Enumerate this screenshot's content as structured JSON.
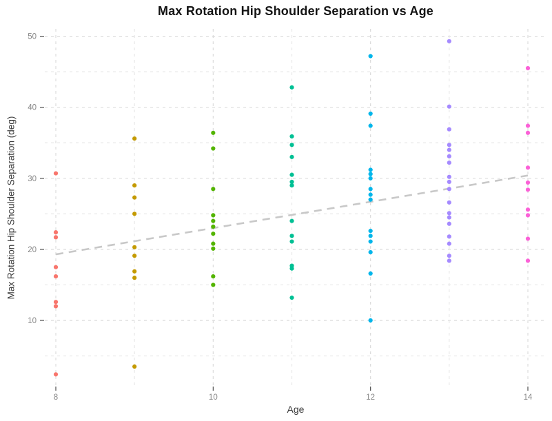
{
  "title": "Max Rotation Hip Shoulder Separation vs Age",
  "x_axis": {
    "label": "Age",
    "ticks": [
      8,
      10,
      12,
      14
    ],
    "minor_ticks": [
      9,
      11,
      13
    ],
    "range": [
      7.86,
      14.24
    ]
  },
  "y_axis": {
    "label": "Max Rotation Hip Shoulder Separation (deg)",
    "ticks": [
      10,
      20,
      30,
      40,
      50
    ],
    "minor_ticks": [
      5,
      15,
      25,
      35,
      45
    ],
    "range": [
      0.8,
      51.0
    ]
  },
  "colors": {
    "age_8": "#F8766D",
    "age_9": "#C49A00",
    "age_10": "#53B400",
    "age_11": "#00C094",
    "age_12": "#00B6EB",
    "age_13": "#A58AFF",
    "age_14": "#FB61D7",
    "grid_major": "#DBDBDB",
    "grid_minor": "#E8E8E8",
    "tick_mark": "#4d4d4d",
    "trend": "#C8C8C8",
    "title_text": "#141414"
  },
  "chart_data": {
    "type": "scatter",
    "title": "Max Rotation Hip Shoulder Separation vs Age",
    "xlabel": "Age",
    "ylabel": "Max Rotation Hip Shoulder Separation (deg)",
    "xlim": [
      7.86,
      14.24
    ],
    "ylim": [
      0.8,
      51.0
    ],
    "grid": "dashed major and minor, no axis lines",
    "legend_position": "none",
    "series": [
      {
        "name": "Age 8",
        "x": 8,
        "color": "#F8766D",
        "values": [
          30.7,
          22.4,
          21.7,
          17.5,
          16.2,
          12.6,
          12.0,
          2.4
        ]
      },
      {
        "name": "Age 9",
        "x": 9,
        "color": "#C49A00",
        "values": [
          35.6,
          29.0,
          27.3,
          25.0,
          20.3,
          19.1,
          16.9,
          16.0,
          3.5
        ]
      },
      {
        "name": "Age 10",
        "x": 10,
        "color": "#53B400",
        "values": [
          36.4,
          34.2,
          28.5,
          24.8,
          24.0,
          23.2,
          22.2,
          20.8,
          20.1,
          16.2,
          15.0
        ]
      },
      {
        "name": "Age 11",
        "x": 11,
        "color": "#00C094",
        "values": [
          42.8,
          35.9,
          34.7,
          33.0,
          30.5,
          29.5,
          29.0,
          24.0,
          21.9,
          21.1,
          17.7,
          17.3,
          13.2
        ]
      },
      {
        "name": "Age 12",
        "x": 12,
        "color": "#00B6EB",
        "values": [
          47.2,
          39.1,
          37.4,
          31.2,
          30.6,
          30.0,
          28.5,
          27.7,
          27.0,
          22.6,
          21.9,
          21.1,
          19.6,
          16.6,
          10.0
        ]
      },
      {
        "name": "Age 13",
        "x": 13,
        "color": "#A58AFF",
        "values": [
          49.3,
          40.1,
          36.9,
          34.7,
          34.0,
          33.1,
          32.2,
          30.2,
          29.5,
          28.5,
          26.6,
          25.1,
          24.5,
          23.6,
          21.8,
          20.8,
          19.1,
          18.4
        ]
      },
      {
        "name": "Age 14",
        "x": 14,
        "color": "#FB61D7",
        "values": [
          45.5,
          37.4,
          36.4,
          31.5,
          29.4,
          28.4,
          25.6,
          24.8,
          21.5,
          18.4
        ]
      }
    ],
    "trend_line": {
      "style": "dashed",
      "color": "#C8C8C8",
      "from": {
        "x": 8,
        "y": 19.3
      },
      "to": {
        "x": 14,
        "y": 30.4
      }
    }
  }
}
